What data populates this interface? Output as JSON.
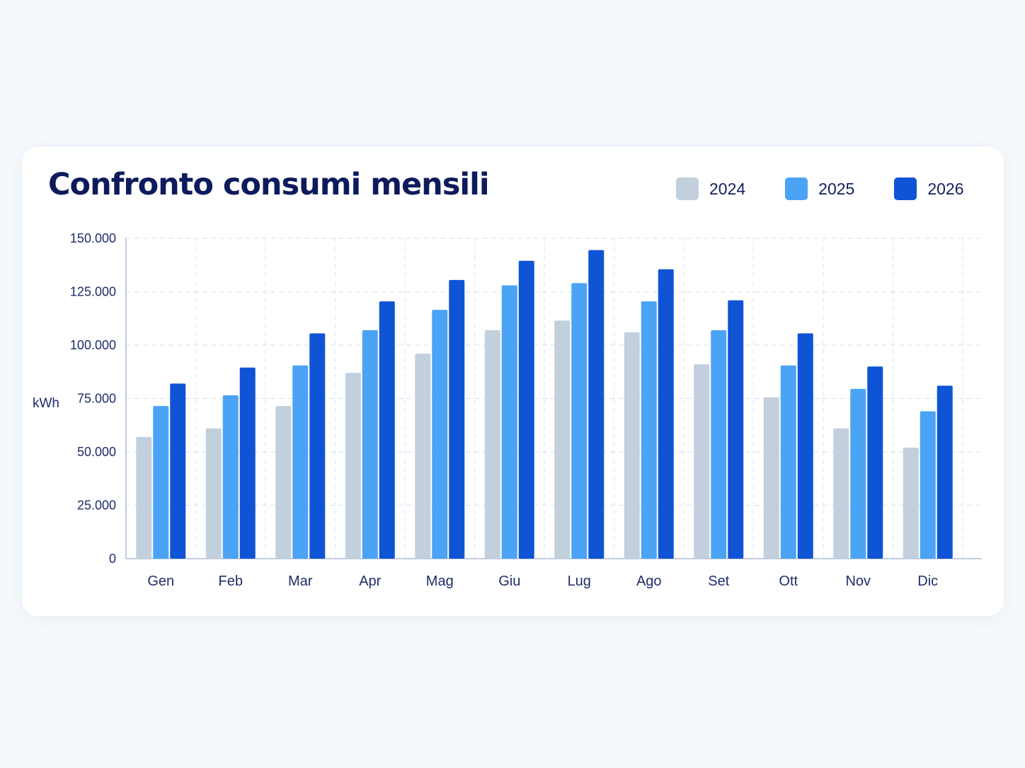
{
  "chart_data": {
    "type": "bar",
    "title": "Confronto consumi mensili",
    "xlabel": "",
    "ylabel": "kWh",
    "ylim": [
      0,
      150000
    ],
    "yticks": [
      0,
      25000,
      50000,
      75000,
      100000,
      125000,
      150000
    ],
    "ytick_labels": [
      "0",
      "25.000",
      "50.000",
      "75.000",
      "100.000",
      "125.000",
      "150.000"
    ],
    "categories": [
      "Gen",
      "Feb",
      "Mar",
      "Apr",
      "Mag",
      "Giu",
      "Lug",
      "Ago",
      "Set",
      "Ott",
      "Nov",
      "Dic"
    ],
    "series": [
      {
        "name": "2024",
        "color": "#c2cfdd",
        "values": [
          57000,
          61000,
          71500,
          87000,
          96000,
          107000,
          111500,
          106000,
          91000,
          75500,
          61000,
          52000
        ]
      },
      {
        "name": "2025",
        "color": "#4ba3f5",
        "values": [
          71500,
          76500,
          90500,
          107000,
          116500,
          128000,
          129000,
          120500,
          107000,
          90500,
          79500,
          69000
        ]
      },
      {
        "name": "2026",
        "color": "#0f54d4",
        "values": [
          82000,
          89500,
          105500,
          120500,
          130500,
          139500,
          144500,
          135500,
          121000,
          105500,
          90000,
          81000
        ]
      }
    ],
    "grid": true,
    "legend_position": "top-right"
  }
}
